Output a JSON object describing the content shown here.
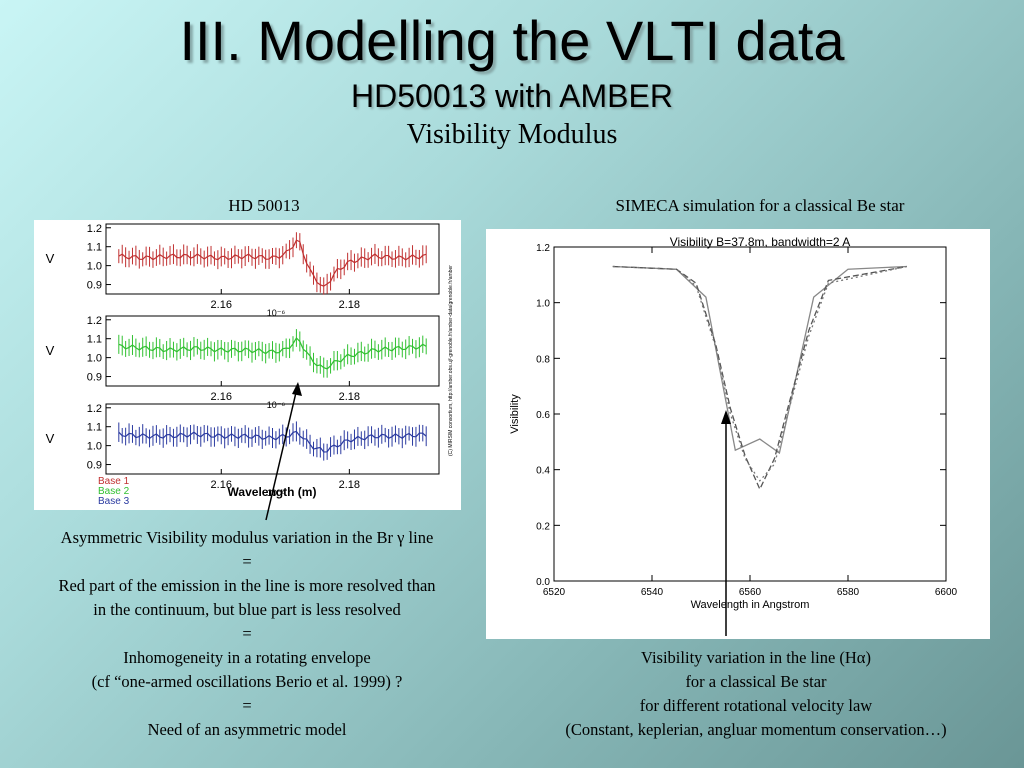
{
  "slide": {
    "title": "III. Modelling the VLTI data",
    "subtitle": "HD50013 with AMBER",
    "section": "Visibility Modulus"
  },
  "left_panel": {
    "label": "HD 50013",
    "caption_lines": [
      "Asymmetric Visibility modulus variation in the Br γ  line",
      "=",
      "Red part of the emission in the line is more resolved than",
      "in the continuum, but blue part is less resolved",
      "=",
      "Inhomogeneity in a rotating envelope",
      "(cf “one-armed oscillations Berio et al. 1999) ?",
      "=",
      "Need of an asymmetric model"
    ]
  },
  "right_panel": {
    "label": "SIMECA simulation for a classical Be star",
    "caption_lines": [
      "Visibility variation in the line (Hα)",
      "for a classical Be star",
      "for different rotational velocity law",
      "(Constant, keplerian, angluar momentum conservation…)"
    ]
  },
  "chart_data": [
    {
      "type": "line",
      "subplots": [
        {
          "name": "Base 1",
          "color": "#c03030",
          "ylabel": "V",
          "yticks": [
            "1.2",
            "1.1",
            "1.0",
            "0.9"
          ],
          "ylim": [
            0.85,
            1.22
          ],
          "x": [
            2.144,
            2.148,
            2.152,
            2.156,
            2.16,
            2.164,
            2.168,
            2.17,
            2.172,
            2.174,
            2.176,
            2.178,
            2.18,
            2.184,
            2.188,
            2.192
          ],
          "y": [
            1.05,
            1.04,
            1.05,
            1.05,
            1.04,
            1.05,
            1.04,
            1.06,
            1.14,
            0.96,
            0.88,
            0.97,
            1.02,
            1.05,
            1.04,
            1.05
          ]
        },
        {
          "name": "Base 2",
          "color": "#30c030",
          "ylabel": "V",
          "yticks": [
            "1.2",
            "1.1",
            "1.0",
            "0.9"
          ],
          "ylim": [
            0.85,
            1.22
          ],
          "x": [
            2.144,
            2.148,
            2.152,
            2.156,
            2.16,
            2.164,
            2.168,
            2.17,
            2.172,
            2.174,
            2.176,
            2.178,
            2.18,
            2.184,
            2.188,
            2.192
          ],
          "y": [
            1.06,
            1.05,
            1.04,
            1.05,
            1.04,
            1.04,
            1.03,
            1.04,
            1.1,
            0.99,
            0.94,
            0.98,
            1.01,
            1.04,
            1.05,
            1.06
          ]
        },
        {
          "name": "Base 3",
          "color": "#2a3aa0",
          "ylabel": "V",
          "yticks": [
            "1.2",
            "1.1",
            "1.0",
            "0.9"
          ],
          "ylim": [
            0.85,
            1.22
          ],
          "x": [
            2.144,
            2.148,
            2.152,
            2.156,
            2.16,
            2.164,
            2.168,
            2.17,
            2.172,
            2.174,
            2.176,
            2.178,
            2.18,
            2.184,
            2.188,
            2.192
          ],
          "y": [
            1.06,
            1.05,
            1.05,
            1.06,
            1.05,
            1.05,
            1.04,
            1.05,
            1.07,
            1.0,
            0.97,
            1.0,
            1.03,
            1.05,
            1.05,
            1.06
          ]
        }
      ],
      "xticks": [
        "2.16",
        "2.18"
      ],
      "xtick_values": [
        2.16,
        2.18
      ],
      "xlim": [
        2.142,
        2.194
      ],
      "x_multiplier": "10⁻⁶",
      "xlabel": "Wavelength (m)",
      "side_text": "(C) MIRSIM consortium, http://amber.obs.ujf-grenoble.fr/amber-data/grenoble.fr/amber"
    },
    {
      "type": "line",
      "title": "Visibility  B=37.8m, bandwidth=2 A",
      "xlabel": "Wavelength in Angstrom",
      "ylabel": "Visibility",
      "xlim": [
        6520,
        6600
      ],
      "ylim": [
        0.0,
        1.2
      ],
      "xticks": [
        "6520",
        "6540",
        "6560",
        "6580",
        "6600"
      ],
      "xtick_values": [
        6520,
        6540,
        6560,
        6580,
        6600
      ],
      "yticks": [
        "0.0",
        "0.2",
        "0.4",
        "0.6",
        "0.8",
        "1.0",
        "1.2"
      ],
      "ytick_values": [
        0.0,
        0.2,
        0.4,
        0.6,
        0.8,
        1.0,
        1.2
      ],
      "series": [
        {
          "style": "solid",
          "x": [
            6532,
            6545,
            6551,
            6557,
            6562,
            6566,
            6573,
            6580,
            6592
          ],
          "y": [
            1.13,
            1.12,
            1.02,
            0.47,
            0.51,
            0.46,
            1.02,
            1.12,
            1.13
          ]
        },
        {
          "style": "dash",
          "x": [
            6532,
            6545,
            6549,
            6553,
            6556,
            6559,
            6562,
            6565,
            6568,
            6572,
            6576,
            6592
          ],
          "y": [
            1.13,
            1.12,
            1.07,
            0.85,
            0.62,
            0.45,
            0.33,
            0.44,
            0.64,
            0.9,
            1.08,
            1.13
          ]
        },
        {
          "style": "dot",
          "x": [
            6532,
            6545,
            6549,
            6553,
            6556,
            6559,
            6562,
            6565,
            6568,
            6572,
            6576,
            6592
          ],
          "y": [
            1.13,
            1.12,
            1.06,
            0.84,
            0.6,
            0.44,
            0.36,
            0.42,
            0.62,
            0.88,
            1.07,
            1.13
          ]
        }
      ]
    }
  ]
}
